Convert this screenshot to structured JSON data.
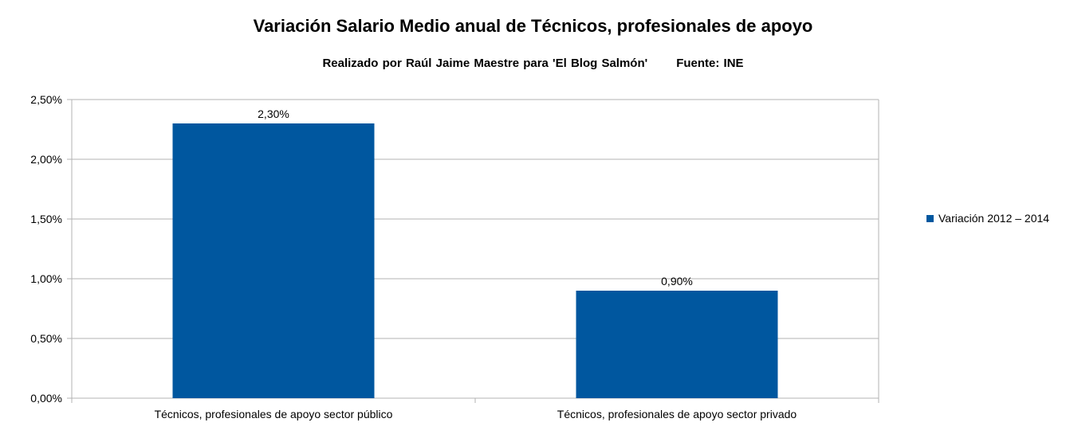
{
  "chart_data": {
    "type": "bar",
    "title": "Variación Salario Medio anual de Técnicos, profesionales de apoyo",
    "subtitle": "Realizado por Raúl Jaime Maestre para 'El Blog Salmón'",
    "source": "Fuente: INE",
    "categories": [
      "Técnicos, profesionales de apoyo sector público",
      "Técnicos, profesionales de apoyo sector privado"
    ],
    "series": [
      {
        "name": "Variación 2012 – 2014",
        "values": [
          2.3,
          0.9
        ],
        "labels": [
          "2,30%",
          "0,90%"
        ],
        "color": "#00579f"
      }
    ],
    "ylim": [
      0,
      2.5
    ],
    "yticks": [
      "0,00%",
      "0,50%",
      "1,00%",
      "1,50%",
      "2,00%",
      "2,50%"
    ],
    "grid": true,
    "legend_position": "right"
  }
}
